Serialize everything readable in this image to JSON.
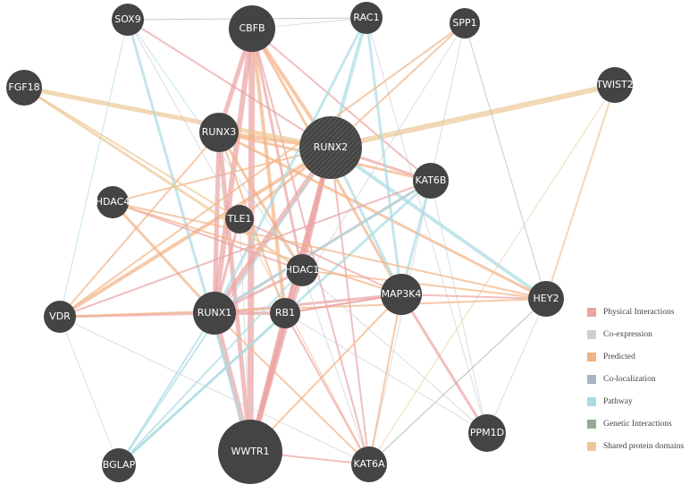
{
  "nodes": [
    {
      "label": "SOX9"
    },
    {
      "label": "CBFB"
    },
    {
      "label": "RAC1"
    },
    {
      "label": "SPP1"
    },
    {
      "label": "FGF18"
    },
    {
      "label": "TWIST2"
    },
    {
      "label": "RUNX3"
    },
    {
      "label": "RUNX2"
    },
    {
      "label": "KAT6B"
    },
    {
      "label": "HDAC4"
    },
    {
      "label": "TLE1"
    },
    {
      "label": "HDAC1"
    },
    {
      "label": "MAP3K4"
    },
    {
      "label": "HEY2"
    },
    {
      "label": "VDR"
    },
    {
      "label": "RUNX1"
    },
    {
      "label": "RB1"
    },
    {
      "label": "PPM1D"
    },
    {
      "label": "BGLAP"
    },
    {
      "label": "WWTR1"
    },
    {
      "label": "KAT6A"
    }
  ],
  "legend": [
    {
      "label": "Physical Interactions"
    },
    {
      "label": "Co-expression"
    },
    {
      "label": "Predicted"
    },
    {
      "label": "Co-localization"
    },
    {
      "label": "Pathway"
    },
    {
      "label": "Genetic Interactions"
    },
    {
      "label": "Shared protein domains"
    }
  ]
}
